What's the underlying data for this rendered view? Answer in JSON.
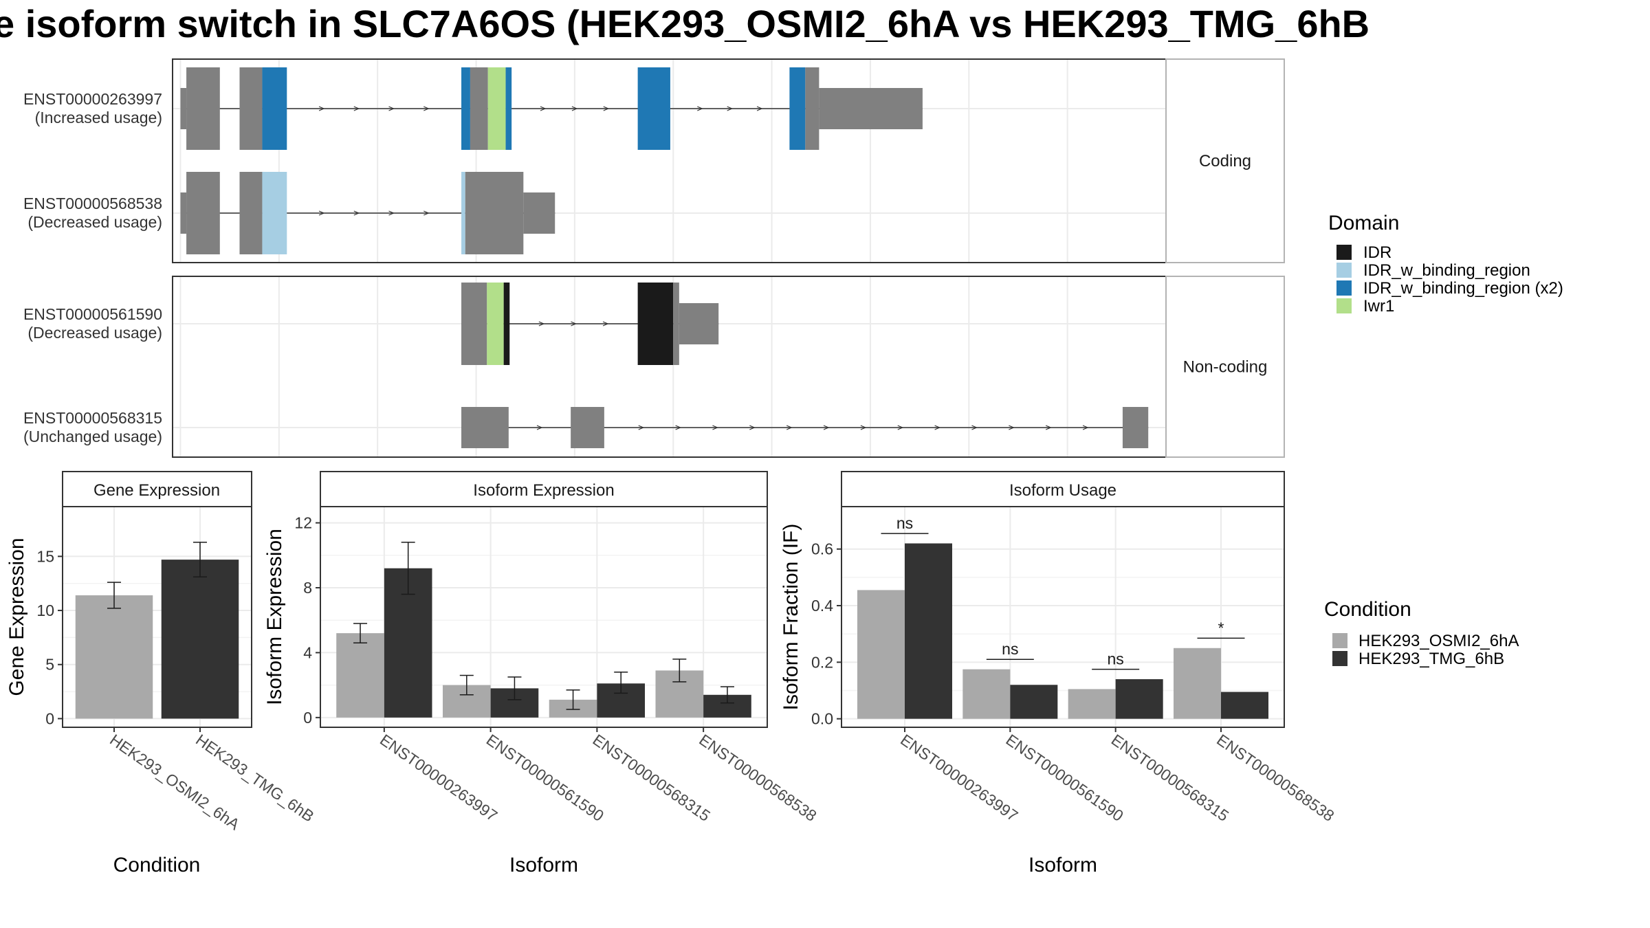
{
  "title": "e isoform switch in SLC7A6OS (HEK293_OSMI2_6hA vs HEK293_TMG_6hB",
  "colors": {
    "exon": "#808080",
    "condition_a": "#a9a9a9",
    "condition_b": "#333333",
    "panel_border": "#333333",
    "strip_border": "#b3b3b3",
    "grid": "#ebebeb",
    "text": "#333333"
  },
  "transcript_plot": {
    "groups": [
      {
        "name": "Coding",
        "transcripts": [
          {
            "id": "ENST00000263997",
            "usage_label": "(Increased usage)",
            "exons": [
              {
                "start": 0.0,
                "end": 0.6,
                "type": "utr"
              },
              {
                "start": 0.6,
                "end": 4.0,
                "type": "cds"
              },
              {
                "start": 6.0,
                "end": 8.3,
                "type": "cds"
              },
              {
                "start": 8.3,
                "end": 10.8,
                "type": "cds",
                "domain": "IDR_w_binding_region (x2)"
              },
              {
                "start": 28.5,
                "end": 29.4,
                "type": "cds",
                "domain": "IDR_w_binding_region (x2)"
              },
              {
                "start": 29.4,
                "end": 31.2,
                "type": "cds"
              },
              {
                "start": 31.2,
                "end": 33.0,
                "type": "cds",
                "domain": "Iwr1"
              },
              {
                "start": 33.0,
                "end": 33.6,
                "type": "cds",
                "domain": "IDR_w_binding_region (x2)"
              },
              {
                "start": 46.4,
                "end": 49.7,
                "type": "cds",
                "domain": "IDR_w_binding_region (x2)"
              },
              {
                "start": 61.8,
                "end": 63.4,
                "type": "cds",
                "domain": "IDR_w_binding_region (x2)"
              },
              {
                "start": 63.4,
                "end": 64.8,
                "type": "cds"
              },
              {
                "start": 64.8,
                "end": 75.3,
                "type": "utr"
              }
            ]
          },
          {
            "id": "ENST00000568538",
            "usage_label": "(Decreased usage)",
            "exons": [
              {
                "start": 0.0,
                "end": 0.6,
                "type": "utr"
              },
              {
                "start": 0.6,
                "end": 4.0,
                "type": "cds"
              },
              {
                "start": 6.0,
                "end": 8.3,
                "type": "cds"
              },
              {
                "start": 8.3,
                "end": 10.8,
                "type": "cds",
                "domain": "IDR_w_binding_region"
              },
              {
                "start": 28.5,
                "end": 28.9,
                "type": "cds",
                "domain": "IDR_w_binding_region"
              },
              {
                "start": 28.9,
                "end": 34.8,
                "type": "cds"
              },
              {
                "start": 34.8,
                "end": 38.0,
                "type": "utr"
              }
            ]
          }
        ]
      },
      {
        "name": "Non-coding",
        "transcripts": [
          {
            "id": "ENST00000561590",
            "usage_label": "(Decreased usage)",
            "exons": [
              {
                "start": 28.5,
                "end": 31.1,
                "type": "cds"
              },
              {
                "start": 31.1,
                "end": 32.8,
                "type": "cds",
                "domain": "Iwr1"
              },
              {
                "start": 32.8,
                "end": 33.4,
                "type": "cds",
                "domain": "IDR"
              },
              {
                "start": 46.4,
                "end": 50.0,
                "type": "cds",
                "domain": "IDR"
              },
              {
                "start": 50.0,
                "end": 50.6,
                "type": "cds"
              },
              {
                "start": 50.6,
                "end": 54.6,
                "type": "utr"
              }
            ]
          },
          {
            "id": "ENST00000568315",
            "usage_label": "(Unchanged usage)",
            "exons": [
              {
                "start": 28.5,
                "end": 33.3,
                "type": "utr"
              },
              {
                "start": 39.6,
                "end": 43.0,
                "type": "utr"
              },
              {
                "start": 95.6,
                "end": 98.2,
                "type": "utr"
              }
            ]
          }
        ]
      }
    ],
    "x_range": [
      -0.8,
      100
    ],
    "legend_title": "Domain",
    "legend": [
      {
        "name": "IDR",
        "color": "#1a1a1a"
      },
      {
        "name": "IDR_w_binding_region",
        "color": "#a6cee3"
      },
      {
        "name": "IDR_w_binding_region (x2)",
        "color": "#1f78b4"
      },
      {
        "name": "Iwr1",
        "color": "#b2df8a"
      }
    ]
  },
  "chart_data": [
    {
      "type": "bar",
      "title": "Gene Expression",
      "xlabel": "Condition",
      "ylabel": "Gene Expression",
      "categories": [
        "HEK293_OSMI2_6hA",
        "HEK293_TMG_6hB"
      ],
      "values": [
        11.4,
        14.7
      ],
      "errors": [
        [
          10.2,
          12.6
        ],
        [
          13.1,
          16.3
        ]
      ],
      "ylim": [
        -0.8,
        19.6
      ],
      "yticks": [
        0,
        5,
        10,
        15
      ]
    },
    {
      "type": "bar",
      "title": "Isoform Expression",
      "xlabel": "Isoform",
      "ylabel": "Isoform Expression",
      "categories": [
        "ENST00000263997",
        "ENST00000561590",
        "ENST00000568315",
        "ENST00000568538"
      ],
      "series": [
        {
          "name": "HEK293_OSMI2_6hA",
          "values": [
            5.2,
            2.0,
            1.1,
            2.9
          ],
          "errors": [
            [
              4.6,
              5.8
            ],
            [
              1.4,
              2.6
            ],
            [
              0.5,
              1.7
            ],
            [
              2.2,
              3.6
            ]
          ]
        },
        {
          "name": "HEK293_TMG_6hB",
          "values": [
            9.2,
            1.8,
            2.1,
            1.4
          ],
          "errors": [
            [
              7.6,
              10.8
            ],
            [
              1.1,
              2.5
            ],
            [
              1.5,
              2.8
            ],
            [
              0.9,
              1.9
            ]
          ]
        }
      ],
      "ylim": [
        -0.6,
        13.0
      ],
      "yticks": [
        0,
        4,
        8,
        12
      ]
    },
    {
      "type": "bar",
      "title": "Isoform Usage",
      "xlabel": "Isoform",
      "ylabel": "Isoform Fraction (IF)",
      "categories": [
        "ENST00000263997",
        "ENST00000561590",
        "ENST00000568315",
        "ENST00000568538"
      ],
      "series": [
        {
          "name": "HEK293_OSMI2_6hA",
          "values": [
            0.455,
            0.175,
            0.105,
            0.25
          ]
        },
        {
          "name": "HEK293_TMG_6hB",
          "values": [
            0.62,
            0.12,
            0.14,
            0.095
          ]
        }
      ],
      "significance": [
        {
          "label": "ns",
          "y": 0.655
        },
        {
          "label": "ns",
          "y": 0.21
        },
        {
          "label": "ns",
          "y": 0.175
        },
        {
          "label": "*",
          "y": 0.285
        }
      ],
      "ylim": [
        -0.03,
        0.75
      ],
      "yticks": [
        "0.0",
        "0.2",
        "0.4",
        "0.6"
      ]
    }
  ],
  "condition_legend": {
    "title": "Condition",
    "items": [
      "HEK293_OSMI2_6hA",
      "HEK293_TMG_6hB"
    ]
  }
}
